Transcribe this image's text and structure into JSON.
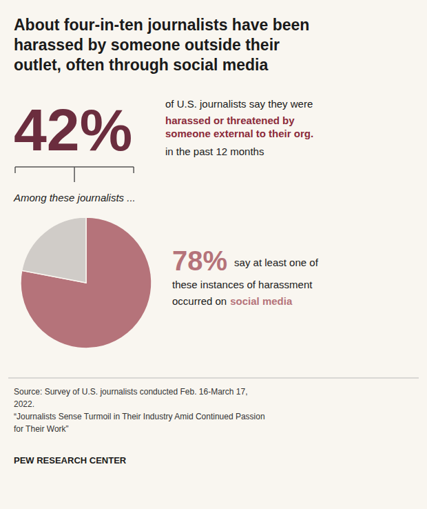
{
  "chart_data": {
    "type": "pie",
    "title": "About four-in-ten journalists have been\nharassed by someone outside their\noutlet, often through social media",
    "values": [
      78,
      22
    ],
    "colors": [
      "#b5737a",
      "#d0ccc8"
    ],
    "annotations": [
      {
        "text": "42%",
        "color": "#6b2d3e"
      },
      {
        "text": "of U.S. journalists say they were"
      },
      {
        "text": "harassed or threatened by\nsomeone external to their org.",
        "color": "#8b2a3a"
      },
      {
        "text": "in the past 12 months"
      },
      {
        "text": "Among these journalists ..."
      },
      {
        "text": "78%",
        "color": "#b5737a"
      },
      {
        "text": "say at least one of"
      },
      {
        "text": "these instances of harassment"
      },
      {
        "text": "occurred on"
      },
      {
        "text": "social media",
        "color": "#b5737a"
      },
      {
        "text": "Source: Survey of U.S. journalists conducted Feb. 16-March 17,\n2022.\n“Journalists Sense Turmoil in Their Industry Amid Continued Passion\nfor Their Work”"
      },
      {
        "text": "PEW RESEARCH CENTER"
      }
    ]
  }
}
